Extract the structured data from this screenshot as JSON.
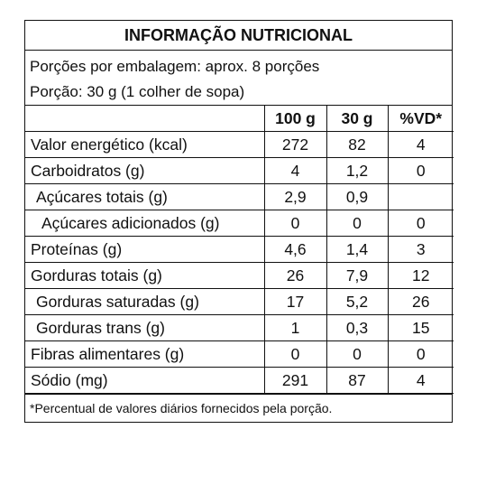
{
  "title": "INFORMAÇÃO NUTRICIONAL",
  "servings_per_package": "Porções por embalagem: aprox. 8 porções",
  "serving_size": "Porção: 30 g (1 colher de sopa)",
  "columns": [
    "",
    "100 g",
    "30 g",
    "%VD*"
  ],
  "rows": [
    {
      "name": "Valor energético (kcal)",
      "per100": "272",
      "perServing": "82",
      "vd": "4"
    },
    {
      "name": "Carboidratos (g)",
      "per100": "4",
      "perServing": "1,2",
      "vd": "0"
    },
    {
      "name": "Açúcares totais (g)",
      "per100": "2,9",
      "perServing": "0,9",
      "vd": ""
    },
    {
      "name": "Açúcares adicionados (g)",
      "per100": "0",
      "perServing": "0",
      "vd": "0"
    },
    {
      "name": "Proteínas (g)",
      "per100": "4,6",
      "perServing": "1,4",
      "vd": "3"
    },
    {
      "name": "Gorduras totais (g)",
      "per100": "26",
      "perServing": "7,9",
      "vd": "12"
    },
    {
      "name": "Gorduras saturadas (g)",
      "per100": "17",
      "perServing": "5,2",
      "vd": "26"
    },
    {
      "name": "Gorduras trans (g)",
      "per100": "1",
      "perServing": "0,3",
      "vd": "15"
    },
    {
      "name": "Fibras alimentares (g)",
      "per100": "0",
      "perServing": "0",
      "vd": "0"
    },
    {
      "name": "Sódio (mg)",
      "per100": "291",
      "perServing": "87",
      "vd": "4"
    }
  ],
  "footnote": "*Percentual de valores diários fornecidos pela porção."
}
